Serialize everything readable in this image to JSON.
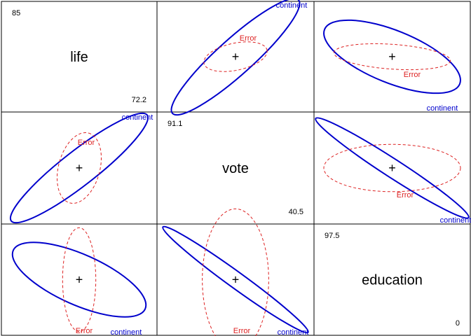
{
  "chart_data": {
    "type": "scatter",
    "layout": "pairs-matrix",
    "grid": false,
    "colors": {
      "hypothesis": "#0000CC",
      "error": "#DD2222",
      "text": "#000000",
      "frame": "#000000"
    },
    "variables": [
      {
        "name": "life",
        "max": "85",
        "min": "72.2"
      },
      {
        "name": "vote",
        "max": "91.1",
        "min": "40.5"
      },
      {
        "name": "education",
        "max": "97.5",
        "min": "0"
      }
    ],
    "ellipse_labels": {
      "hypothesis": "continent",
      "error": "Error"
    },
    "center_marker": "+",
    "pairs": [
      {
        "row": 0,
        "col": 1,
        "hypothesis": {
          "angle": -42,
          "a": 1.0,
          "b": 0.21
        },
        "error": {
          "angle": -12,
          "a": 0.38,
          "b": 0.16
        }
      },
      {
        "row": 0,
        "col": 2,
        "hypothesis": {
          "angle": 22,
          "a": 1.0,
          "b": 0.36
        },
        "error": {
          "angle": 4,
          "a": 0.8,
          "b": 0.17
        }
      },
      {
        "row": 1,
        "col": 0,
        "hypothesis": {
          "angle": -38,
          "a": 1.0,
          "b": 0.2
        },
        "error": {
          "angle": -75,
          "a": 0.42,
          "b": 0.24
        }
      },
      {
        "row": 1,
        "col": 2,
        "hypothesis": {
          "angle": 33,
          "a": 1.0,
          "b": 0.1
        },
        "error": {
          "angle": 0,
          "a": 0.75,
          "b": 0.26
        }
      },
      {
        "row": 2,
        "col": 0,
        "hypothesis": {
          "angle": 24,
          "a": 1.0,
          "b": 0.35
        },
        "error": {
          "angle": 90,
          "a": 0.72,
          "b": 0.23
        }
      },
      {
        "row": 2,
        "col": 1,
        "hypothesis": {
          "angle": 36,
          "a": 1.0,
          "b": 0.09
        },
        "error": {
          "angle": 90,
          "a": 0.79,
          "b": 0.37
        }
      }
    ]
  }
}
